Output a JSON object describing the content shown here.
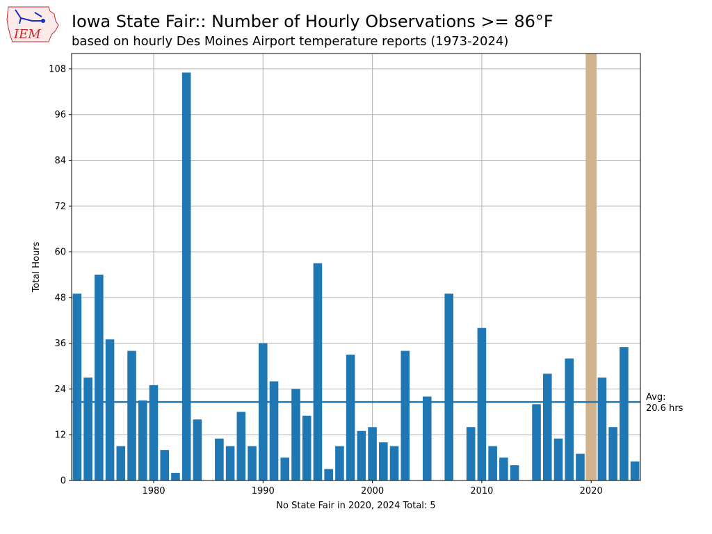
{
  "header": {
    "logo_label": "IEM",
    "title": "Iowa State Fair:: Number of Hourly Observations >= 86°F",
    "subtitle": "based on hourly Des Moines Airport temperature reports (1973-2024)"
  },
  "colors": {
    "bar": "#1f77b4",
    "avg_line": "#1f77b4",
    "highlight_band": "#d2b48c",
    "grid": "#b0b0b0",
    "logo_red": "#c8262b",
    "logo_blue": "#1a2bbf"
  },
  "chart_data": {
    "type": "bar",
    "title": "Iowa State Fair:: Number of Hourly Observations >= 86°F",
    "subtitle": "based on hourly Des Moines Airport temperature reports (1973-2024)",
    "xlabel": "No State Fair in 2020, 2024 Total: 5",
    "ylabel": "Total Hours",
    "xlim": [
      1972.5,
      2024.5
    ],
    "ylim": [
      0,
      112
    ],
    "xticks": [
      1980,
      1990,
      2000,
      2010,
      2020
    ],
    "yticks": [
      0,
      12,
      24,
      36,
      48,
      60,
      72,
      84,
      96,
      108
    ],
    "grid": true,
    "years": [
      1973,
      1974,
      1975,
      1976,
      1977,
      1978,
      1979,
      1980,
      1981,
      1982,
      1983,
      1984,
      1985,
      1986,
      1987,
      1988,
      1989,
      1990,
      1991,
      1992,
      1993,
      1994,
      1995,
      1996,
      1997,
      1998,
      1999,
      2000,
      2001,
      2002,
      2003,
      2004,
      2005,
      2006,
      2007,
      2008,
      2009,
      2010,
      2011,
      2012,
      2013,
      2014,
      2015,
      2016,
      2017,
      2018,
      2019,
      2020,
      2021,
      2022,
      2023,
      2024
    ],
    "values": [
      49,
      27,
      54,
      37,
      9,
      34,
      21,
      25,
      8,
      2,
      107,
      16,
      0,
      11,
      9,
      18,
      9,
      36,
      26,
      6,
      24,
      17,
      57,
      3,
      9,
      33,
      13,
      14,
      10,
      9,
      34,
      0,
      22,
      0,
      49,
      0,
      14,
      40,
      9,
      6,
      4,
      0,
      20,
      28,
      11,
      32,
      7,
      0,
      27,
      14,
      35,
      5
    ],
    "average": 20.6,
    "average_label_line1": "Avg:",
    "average_label_line2": "20.6 hrs",
    "highlight_year": 2020
  }
}
